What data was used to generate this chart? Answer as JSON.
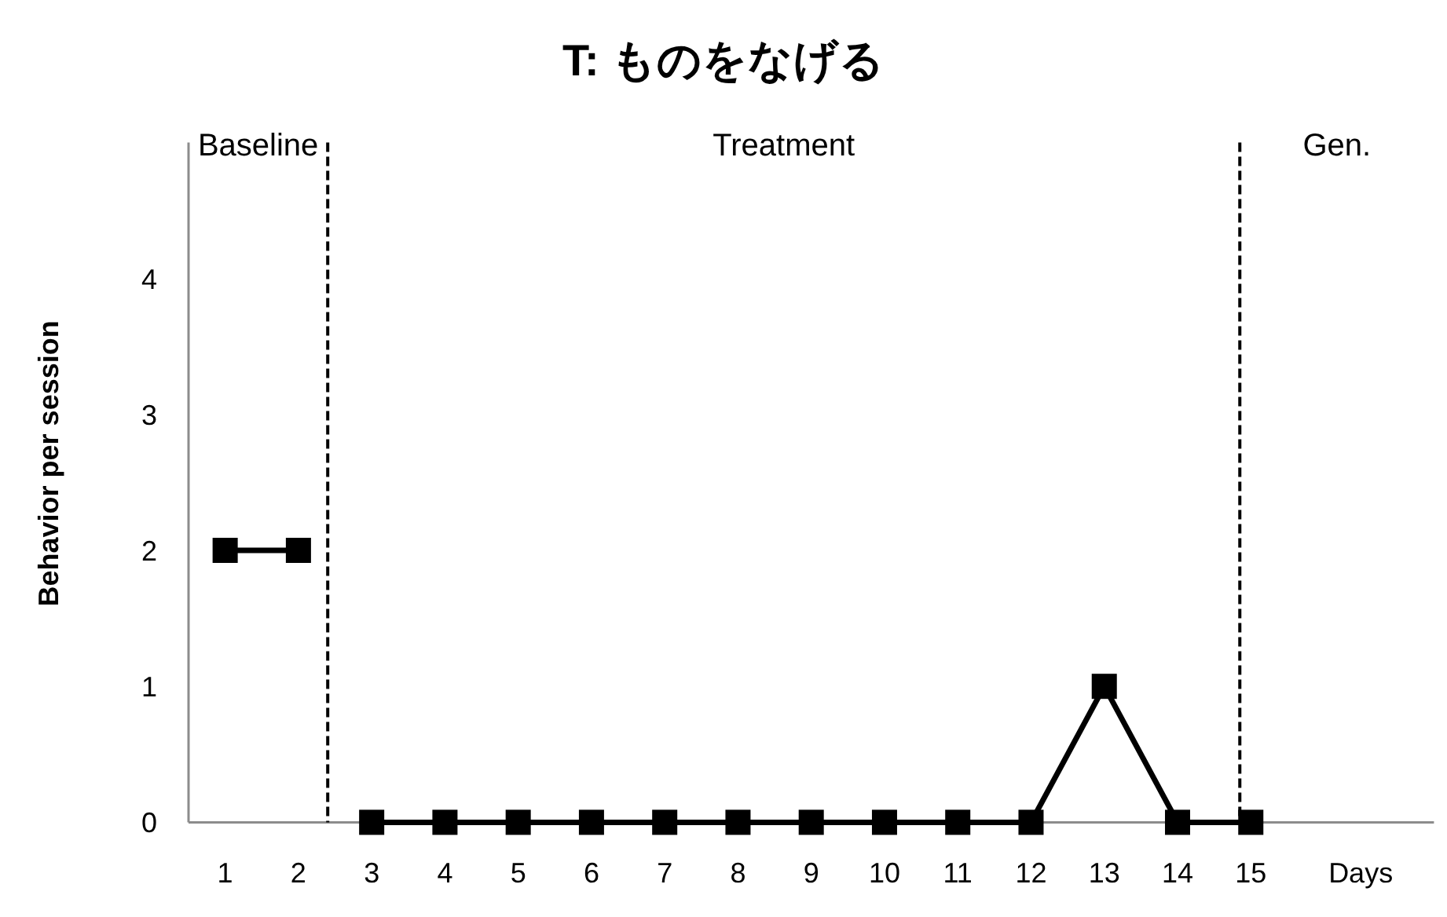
{
  "chart_data": {
    "type": "line",
    "title": "T: ものをなげる",
    "ylabel": "Behavior per session",
    "xlabel": "Days",
    "annotations": [
      "Baseline",
      "Treatment",
      "Gen."
    ],
    "xlim": [
      0.5,
      17.5
    ],
    "xticks": [
      1,
      2,
      3,
      4,
      5,
      6,
      7,
      8,
      9,
      10,
      11,
      12,
      13,
      14,
      15
    ],
    "ylim": [
      0,
      5
    ],
    "yticks": [
      0,
      1,
      2,
      3,
      4
    ],
    "marker": "square",
    "line_style": "solid",
    "series": [
      {
        "color": "#000000",
        "x": [
          1,
          2
        ],
        "values": [
          2,
          2
        ]
      },
      {
        "color": "#000000",
        "x": [
          3,
          4,
          5,
          6,
          7,
          8,
          9,
          10,
          11,
          12,
          13,
          14,
          15
        ],
        "values": [
          0,
          0,
          0,
          0,
          0,
          0,
          0,
          0,
          0,
          0,
          1,
          0,
          0
        ]
      }
    ],
    "ref_lines": [
      {
        "axis": "x",
        "value": 2.4,
        "color": "#000000",
        "line_style": "dashed"
      },
      {
        "axis": "x",
        "value": 14.85,
        "color": "#000000",
        "line_style": "dashed"
      }
    ]
  }
}
